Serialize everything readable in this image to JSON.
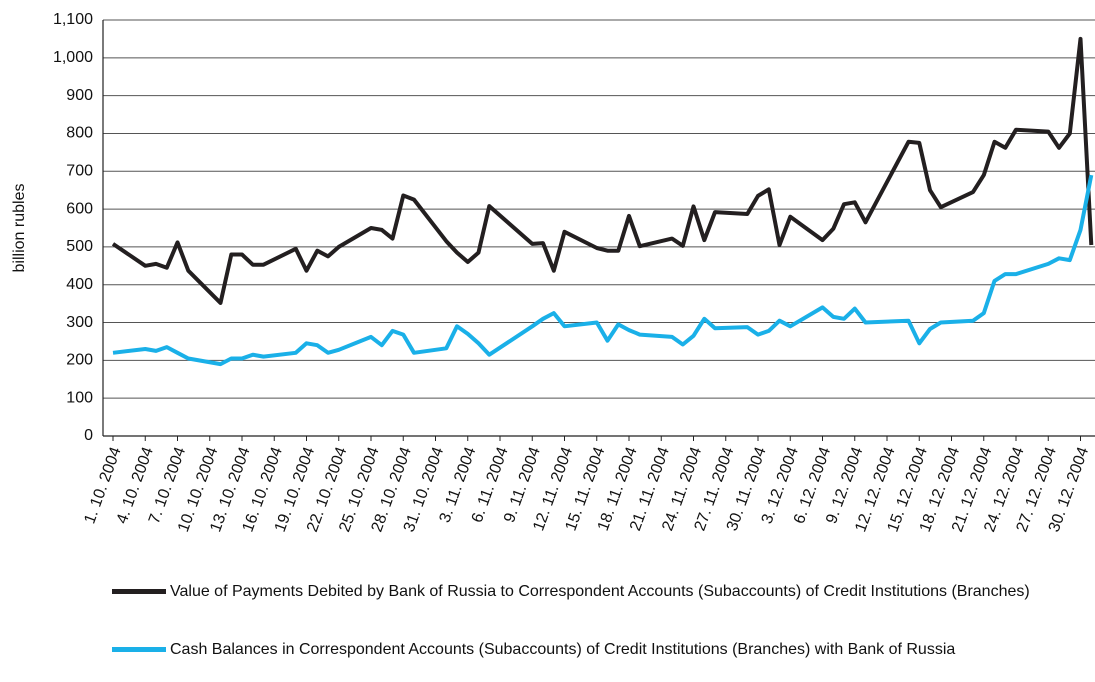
{
  "chart_data": {
    "type": "line",
    "y_label": "billion rubles",
    "x": [
      "1. 10. 2004",
      "4. 10. 2004",
      "5. 10. 2004",
      "6. 10. 2004",
      "7. 10. 2004",
      "8. 10. 2004",
      "11. 10. 2004",
      "12. 10. 2004",
      "13. 10. 2004",
      "14. 10. 2004",
      "15. 10. 2004",
      "18. 10. 2004",
      "19. 10. 2004",
      "20. 10. 2004",
      "21. 10. 2004",
      "22. 10. 2004",
      "25. 10. 2004",
      "26. 10. 2004",
      "27. 10. 2004",
      "28. 10. 2004",
      "29. 10. 2004",
      "1. 11. 2004",
      "2. 11. 2004",
      "3. 11. 2004",
      "4. 11. 2004",
      "5. 11. 2004",
      "9. 11. 2004",
      "10. 11. 2004",
      "11. 11. 2004",
      "12. 11. 2004",
      "15. 11. 2004",
      "16. 11. 2004",
      "17. 11. 2004",
      "18. 11. 2004",
      "19. 11. 2004",
      "22. 11. 2004",
      "23. 11. 2004",
      "24. 11. 2004",
      "25. 11. 2004",
      "26. 11. 2004",
      "29. 11. 2004",
      "30. 11. 2004",
      "1. 12. 2004",
      "2. 12. 2004",
      "3. 12. 2004",
      "6. 12. 2004",
      "7. 12. 2004",
      "8. 12. 2004",
      "9. 12. 2004",
      "10. 12. 2004",
      "14. 12. 2004",
      "15. 12. 2004",
      "16. 12. 2004",
      "17. 12. 2004",
      "20. 12. 2004",
      "21. 12. 2004",
      "22. 12. 2004",
      "23. 12. 2004",
      "24. 12. 2004",
      "27. 12. 2004",
      "28. 12. 2004",
      "29. 12. 2004",
      "30. 12. 2004",
      "31. 12. 2004"
    ],
    "series": [
      {
        "name": "Value of Payments Debited  by Bank of Russia to Correspondent Accounts (Subaccounts) of Credit Institutions (Branches)",
        "color": "#231f20",
        "values": [
          508,
          450,
          455,
          445,
          512,
          437,
          352,
          480,
          480,
          453,
          453,
          495,
          437,
          490,
          475,
          500,
          550,
          545,
          522,
          636,
          625,
          515,
          485,
          460,
          485,
          608,
          508,
          510,
          437,
          540,
          497,
          490,
          490,
          582,
          502,
          522,
          503,
          607,
          518,
          592,
          587,
          635,
          652,
          505,
          580,
          518,
          548,
          613,
          618,
          565,
          778,
          775,
          650,
          605,
          645,
          690,
          778,
          762,
          810,
          805,
          762,
          800,
          1050,
          505
        ]
      },
      {
        "name": "Cash Balances in Correspondent Accounts (Subaccounts) of Credit Institutions (Branches) with Bank of Russia",
        "color": "#1ab0e8",
        "values": [
          220,
          230,
          225,
          235,
          220,
          205,
          190,
          205,
          205,
          215,
          210,
          220,
          245,
          240,
          220,
          228,
          262,
          240,
          278,
          268,
          220,
          232,
          290,
          270,
          245,
          215,
          290,
          310,
          325,
          290,
          300,
          252,
          295,
          280,
          268,
          262,
          242,
          265,
          310,
          285,
          288,
          268,
          278,
          305,
          290,
          340,
          315,
          310,
          337,
          300,
          305,
          245,
          283,
          300,
          305,
          325,
          410,
          428,
          428,
          455,
          470,
          465,
          545,
          690
        ]
      }
    ],
    "xticks": [
      "1. 10. 2004",
      "4. 10. 2004",
      "7. 10. 2004",
      "10. 10. 2004",
      "13. 10. 2004",
      "16. 10. 2004",
      "19. 10. 2004",
      "22. 10. 2004",
      "25. 10. 2004",
      "28. 10. 2004",
      "31. 10. 2004",
      "3. 11. 2004",
      "6. 11. 2004",
      "9. 11. 2004",
      "12. 11. 2004",
      "15. 11. 2004",
      "18. 11. 2004",
      "21. 11. 2004",
      "24. 11. 2004",
      "27. 11. 2004",
      "30. 11. 2004",
      "3. 12. 2004",
      "6. 12. 2004",
      "9. 12. 2004",
      "12. 12. 2004",
      "15. 12. 2004",
      "18. 12. 2004",
      "21. 12. 2004",
      "24. 12. 2004",
      "27. 12. 2004",
      "30. 12. 2004"
    ],
    "ylim": [
      0,
      1100
    ],
    "yticks": [
      0,
      100,
      200,
      300,
      400,
      500,
      600,
      700,
      800,
      900,
      {
        "value": 1000,
        "label": "1,000"
      },
      {
        "value": 1100,
        "label": "1,100"
      }
    ],
    "grid": true,
    "legend": "bottom"
  }
}
